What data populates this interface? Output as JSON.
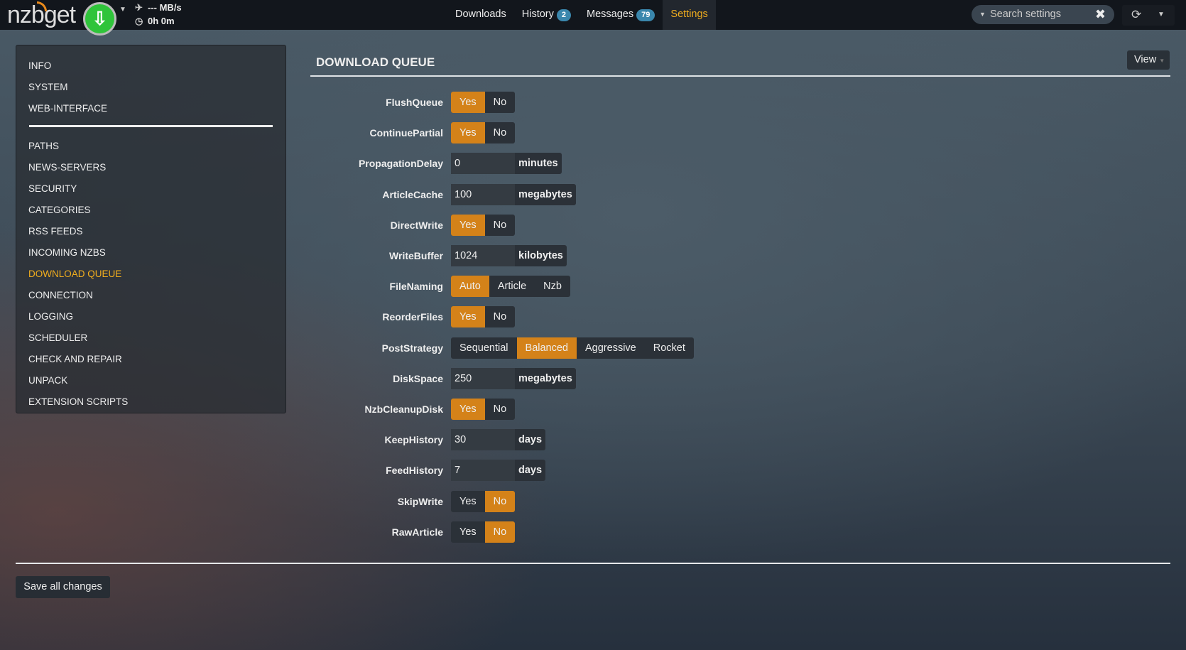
{
  "nav": {
    "logo": "nzbget",
    "speed": "--- MB/s",
    "time": "0h 0m",
    "menu": [
      {
        "label": "Downloads"
      },
      {
        "label": "History",
        "badge": "2"
      },
      {
        "label": "Messages",
        "badge": "79"
      },
      {
        "label": "Settings"
      }
    ],
    "search_placeholder": "Search settings"
  },
  "sidebar": {
    "group1": [
      "INFO",
      "SYSTEM",
      "WEB-INTERFACE"
    ],
    "group2": [
      "PATHS",
      "NEWS-SERVERS",
      "SECURITY",
      "CATEGORIES",
      "RSS FEEDS",
      "INCOMING NZBS",
      "DOWNLOAD QUEUE",
      "CONNECTION",
      "LOGGING",
      "SCHEDULER",
      "CHECK AND REPAIR",
      "UNPACK",
      "EXTENSION SCRIPTS"
    ],
    "selected": "DOWNLOAD QUEUE"
  },
  "section": {
    "title": "DOWNLOAD QUEUE",
    "view_label": "View"
  },
  "settings": [
    {
      "name": "FlushQueue",
      "type": "switch",
      "options": [
        "Yes",
        "No"
      ],
      "selected": "Yes"
    },
    {
      "name": "ContinuePartial",
      "type": "switch",
      "options": [
        "Yes",
        "No"
      ],
      "selected": "Yes"
    },
    {
      "name": "PropagationDelay",
      "type": "input",
      "value": "0",
      "unit": "minutes"
    },
    {
      "name": "ArticleCache",
      "type": "input",
      "value": "100",
      "unit": "megabytes"
    },
    {
      "name": "DirectWrite",
      "type": "switch",
      "options": [
        "Yes",
        "No"
      ],
      "selected": "Yes"
    },
    {
      "name": "WriteBuffer",
      "type": "input",
      "value": "1024",
      "unit": "kilobytes"
    },
    {
      "name": "FileNaming",
      "type": "switch",
      "options": [
        "Auto",
        "Article",
        "Nzb"
      ],
      "selected": "Auto"
    },
    {
      "name": "ReorderFiles",
      "type": "switch",
      "options": [
        "Yes",
        "No"
      ],
      "selected": "Yes"
    },
    {
      "name": "PostStrategy",
      "type": "switch",
      "options": [
        "Sequential",
        "Balanced",
        "Aggressive",
        "Rocket"
      ],
      "selected": "Balanced"
    },
    {
      "name": "DiskSpace",
      "type": "input",
      "value": "250",
      "unit": "megabytes"
    },
    {
      "name": "NzbCleanupDisk",
      "type": "switch",
      "options": [
        "Yes",
        "No"
      ],
      "selected": "Yes"
    },
    {
      "name": "KeepHistory",
      "type": "input",
      "value": "30",
      "unit": "days"
    },
    {
      "name": "FeedHistory",
      "type": "input",
      "value": "7",
      "unit": "days"
    },
    {
      "name": "SkipWrite",
      "type": "switch",
      "options": [
        "Yes",
        "No"
      ],
      "selected": "No"
    },
    {
      "name": "RawArticle",
      "type": "switch",
      "options": [
        "Yes",
        "No"
      ],
      "selected": "No"
    }
  ],
  "save_label": "Save all changes",
  "colors": {
    "accent": "#d48219",
    "active_menu": "#f0ad1e",
    "badge": "#3a87ad",
    "play": "#2fc43a"
  }
}
